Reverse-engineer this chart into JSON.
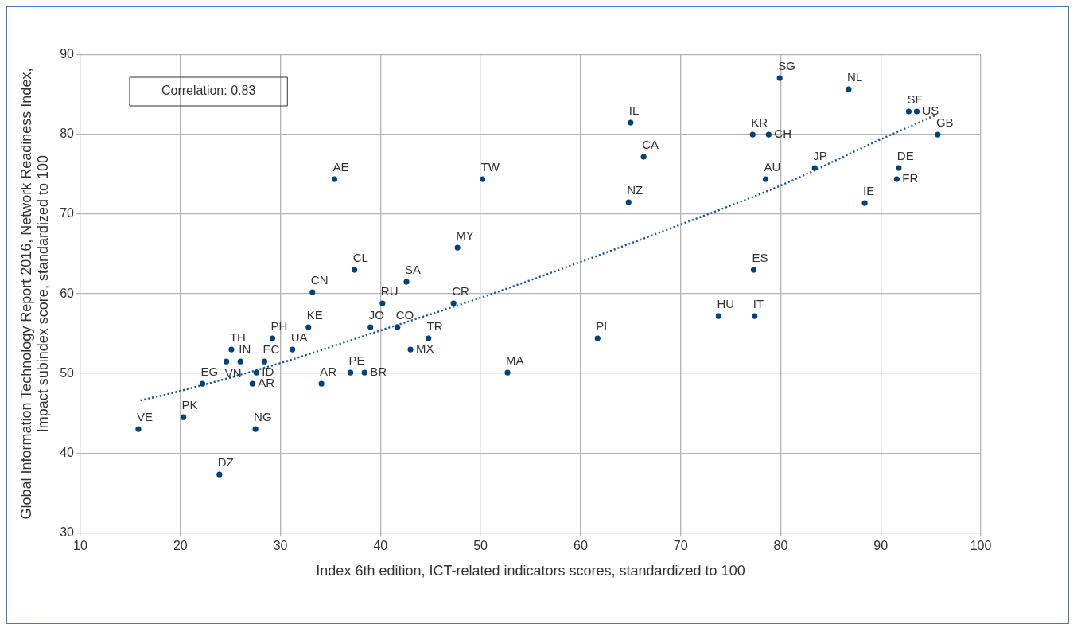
{
  "chart_data": {
    "type": "scatter",
    "xlabel": "Index 6th edition, ICT-related indicators scores, standardized to 100",
    "ylabel": "Global Information Technology Report 2016, Network Readiness Index,\nImpact subindex score, standardized to 100",
    "xlim": [
      10,
      100
    ],
    "ylim": [
      30,
      90
    ],
    "xticks": [
      10,
      20,
      30,
      40,
      50,
      60,
      70,
      80,
      90,
      100
    ],
    "yticks": [
      30,
      40,
      50,
      60,
      70,
      80,
      90
    ],
    "grid": true,
    "series": [
      {
        "color": "#00427a",
        "marker": "circle",
        "x": [
          15.8,
          20.3,
          22.2,
          24.6,
          25.1,
          26.0,
          28.4,
          27.6,
          27.2,
          29.2,
          31.2,
          27.5,
          23.9,
          32.8,
          34.1,
          37.0,
          38.4,
          39.0,
          41.7,
          43.0,
          44.8,
          40.2,
          47.3,
          35.4,
          50.2,
          64.8,
          47.7,
          37.4,
          42.6,
          33.2,
          61.7,
          52.7,
          79.9,
          86.8,
          92.8,
          93.6,
          65.0,
          77.2,
          78.8,
          95.7,
          66.3,
          83.4,
          91.8,
          78.5,
          91.6,
          88.4,
          77.3,
          73.8,
          77.4
        ],
        "values": [
          43.0,
          44.5,
          48.7,
          51.5,
          53.0,
          51.5,
          51.5,
          50.1,
          48.7,
          54.4,
          53.0,
          43.0,
          37.3,
          55.8,
          48.7,
          50.1,
          50.1,
          55.8,
          55.8,
          53.0,
          54.4,
          58.8,
          58.8,
          74.4,
          74.4,
          71.5,
          65.8,
          63.0,
          61.5,
          60.2,
          54.4,
          50.1,
          87.1,
          85.7,
          82.9,
          82.9,
          81.5,
          80.0,
          80.0,
          80.0,
          77.2,
          75.8,
          75.8,
          74.4,
          74.4,
          71.4,
          63.0,
          57.2,
          57.2
        ]
      },
      {
        "type": "line",
        "color": "#1f5a96",
        "line_style": "dotted",
        "x": [
          16,
          20,
          30,
          40,
          50,
          60,
          70,
          80,
          90,
          95.6
        ],
        "values": [
          46.6,
          47.8,
          51.3,
          55.4,
          59.5,
          64.0,
          68.7,
          73.6,
          79.4,
          82.5
        ]
      }
    ],
    "annotations": [
      "Correlation: 0.83",
      {
        "text": "VE",
        "x": 15.8,
        "y": 43.0
      },
      {
        "text": "PK",
        "x": 20.3,
        "y": 44.5
      },
      {
        "text": "EG",
        "x": 22.2,
        "y": 48.7
      },
      {
        "text": "VN",
        "x": 24.6,
        "y": 51.5
      },
      {
        "text": "TH",
        "x": 25.1,
        "y": 53.0
      },
      {
        "text": "IN",
        "x": 26.0,
        "y": 51.5
      },
      {
        "text": "EC",
        "x": 28.4,
        "y": 51.5
      },
      {
        "text": "ID",
        "x": 27.6,
        "y": 50.1
      },
      {
        "text": "AR",
        "x": 27.2,
        "y": 48.7
      },
      {
        "text": "PH",
        "x": 29.2,
        "y": 54.4
      },
      {
        "text": "UA",
        "x": 31.2,
        "y": 53.0
      },
      {
        "text": "NG",
        "x": 27.5,
        "y": 43.0
      },
      {
        "text": "DZ",
        "x": 23.9,
        "y": 37.3
      },
      {
        "text": "KE",
        "x": 32.8,
        "y": 55.8
      },
      {
        "text": "AR",
        "x": 34.1,
        "y": 48.7
      },
      {
        "text": "PE",
        "x": 37.0,
        "y": 50.1
      },
      {
        "text": "BR",
        "x": 38.4,
        "y": 50.1
      },
      {
        "text": "JO",
        "x": 39.0,
        "y": 55.8
      },
      {
        "text": "CO",
        "x": 41.7,
        "y": 55.8
      },
      {
        "text": "MX",
        "x": 43.0,
        "y": 53.0
      },
      {
        "text": "TR",
        "x": 44.8,
        "y": 54.4
      },
      {
        "text": "RU",
        "x": 40.2,
        "y": 58.8
      },
      {
        "text": "CR",
        "x": 47.3,
        "y": 58.8
      },
      {
        "text": "AE",
        "x": 35.4,
        "y": 74.4
      },
      {
        "text": "TW",
        "x": 50.2,
        "y": 74.4
      },
      {
        "text": "NZ",
        "x": 64.8,
        "y": 71.5
      },
      {
        "text": "MY",
        "x": 47.7,
        "y": 65.8
      },
      {
        "text": "CL",
        "x": 37.4,
        "y": 63.0
      },
      {
        "text": "SA",
        "x": 42.6,
        "y": 61.5
      },
      {
        "text": "CN",
        "x": 33.2,
        "y": 60.2
      },
      {
        "text": "PL",
        "x": 61.7,
        "y": 54.4
      },
      {
        "text": "MA",
        "x": 52.7,
        "y": 50.1
      },
      {
        "text": "SG",
        "x": 79.9,
        "y": 87.1
      },
      {
        "text": "NL",
        "x": 86.8,
        "y": 85.7
      },
      {
        "text": "SE",
        "x": 92.8,
        "y": 82.9
      },
      {
        "text": "US",
        "x": 93.6,
        "y": 82.9
      },
      {
        "text": "IL",
        "x": 65.0,
        "y": 81.5
      },
      {
        "text": "KR",
        "x": 77.2,
        "y": 80.0
      },
      {
        "text": "CH",
        "x": 78.8,
        "y": 80.0
      },
      {
        "text": "GB",
        "x": 95.7,
        "y": 80.0
      },
      {
        "text": "CA",
        "x": 66.3,
        "y": 77.2
      },
      {
        "text": "JP",
        "x": 83.4,
        "y": 75.8
      },
      {
        "text": "DE",
        "x": 91.8,
        "y": 75.8
      },
      {
        "text": "AU",
        "x": 78.5,
        "y": 74.4
      },
      {
        "text": "FR",
        "x": 91.6,
        "y": 74.4
      },
      {
        "text": "IE",
        "x": 88.4,
        "y": 71.4
      },
      {
        "text": "ES",
        "x": 77.3,
        "y": 63.0
      },
      {
        "text": "HU",
        "x": 73.8,
        "y": 57.2
      },
      {
        "text": "IT",
        "x": 77.4,
        "y": 57.2
      }
    ]
  }
}
